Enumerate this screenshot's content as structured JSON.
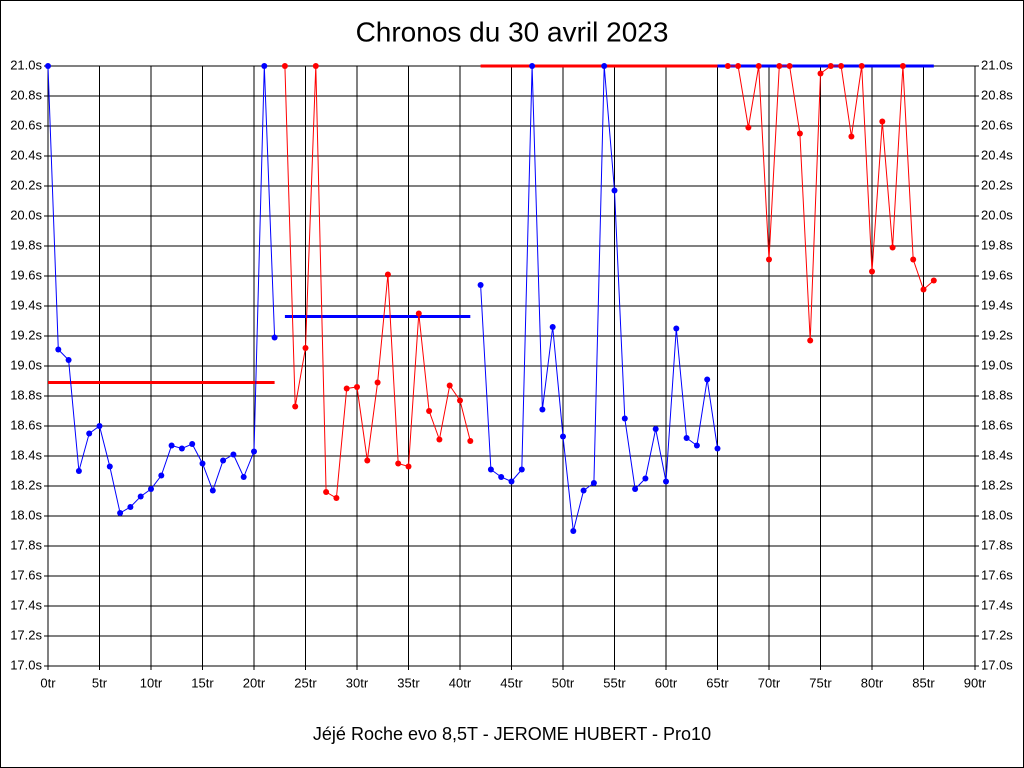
{
  "chart_data": {
    "type": "line",
    "title": "Chronos du 30 avril 2023",
    "caption": "Jéjé Roche evo 8,5T - JEROME HUBERT - Pro10",
    "xlim": [
      0,
      90
    ],
    "xticks": [
      {
        "value": 0,
        "label": "0tr"
      },
      {
        "value": 5,
        "label": "5tr"
      },
      {
        "value": 10,
        "label": "10tr"
      },
      {
        "value": 15,
        "label": "15tr"
      },
      {
        "value": 20,
        "label": "20tr"
      },
      {
        "value": 25,
        "label": "25tr"
      },
      {
        "value": 30,
        "label": "30tr"
      },
      {
        "value": 35,
        "label": "35tr"
      },
      {
        "value": 40,
        "label": "40tr"
      },
      {
        "value": 45,
        "label": "45tr"
      },
      {
        "value": 50,
        "label": "50tr"
      },
      {
        "value": 55,
        "label": "55tr"
      },
      {
        "value": 60,
        "label": "60tr"
      },
      {
        "value": 65,
        "label": "65tr"
      },
      {
        "value": 70,
        "label": "70tr"
      },
      {
        "value": 75,
        "label": "75tr"
      },
      {
        "value": 80,
        "label": "80tr"
      },
      {
        "value": 85,
        "label": "85tr"
      },
      {
        "value": 90,
        "label": "90tr"
      }
    ],
    "ylim": [
      17.0,
      21.0
    ],
    "yticks": [
      {
        "value": 17.0,
        "label": "17.0s"
      },
      {
        "value": 17.2,
        "label": "17.2s"
      },
      {
        "value": 17.4,
        "label": "17.4s"
      },
      {
        "value": 17.6,
        "label": "17.6s"
      },
      {
        "value": 17.8,
        "label": "17.8s"
      },
      {
        "value": 18.0,
        "label": "18.0s"
      },
      {
        "value": 18.2,
        "label": "18.2s"
      },
      {
        "value": 18.4,
        "label": "18.4s"
      },
      {
        "value": 18.6,
        "label": "18.6s"
      },
      {
        "value": 18.8,
        "label": "18.8s"
      },
      {
        "value": 19.0,
        "label": "19.0s"
      },
      {
        "value": 19.2,
        "label": "19.2s"
      },
      {
        "value": 19.4,
        "label": "19.4s"
      },
      {
        "value": 19.6,
        "label": "19.6s"
      },
      {
        "value": 19.8,
        "label": "19.8s"
      },
      {
        "value": 20.0,
        "label": "20.0s"
      },
      {
        "value": 20.2,
        "label": "20.2s"
      },
      {
        "value": 20.4,
        "label": "20.4s"
      },
      {
        "value": 20.6,
        "label": "20.6s"
      },
      {
        "value": 20.8,
        "label": "20.8s"
      },
      {
        "value": 21.0,
        "label": "21.0s"
      }
    ],
    "grid": true,
    "series": [
      {
        "color": "#0000ff",
        "x": [
          0,
          1,
          2,
          3,
          4,
          5,
          6,
          7,
          8,
          9,
          10,
          11,
          12,
          13,
          14,
          15,
          16,
          17,
          18,
          19,
          20,
          21,
          22
        ],
        "values": [
          21.0,
          19.11,
          19.04,
          18.3,
          18.55,
          18.6,
          18.33,
          18.02,
          18.06,
          18.13,
          18.18,
          18.27,
          18.47,
          18.45,
          18.48,
          18.35,
          18.17,
          18.37,
          18.41,
          18.26,
          18.43,
          21.0,
          19.19
        ]
      },
      {
        "color": "#ff0000",
        "x": [
          23,
          24,
          25,
          26,
          27,
          28,
          29,
          30,
          31,
          32,
          33,
          34,
          35,
          36,
          37,
          38,
          39,
          40,
          41
        ],
        "values": [
          21.0,
          18.73,
          19.12,
          21.0,
          18.16,
          18.12,
          18.85,
          18.86,
          18.37,
          18.89,
          19.61,
          18.35,
          18.33,
          19.35,
          18.7,
          18.51,
          18.87,
          18.77,
          18.5
        ]
      },
      {
        "color": "#0000ff",
        "x": [
          42,
          43,
          44,
          45,
          46,
          47,
          48,
          49,
          50,
          51,
          52,
          53,
          54,
          55,
          56,
          57,
          58,
          59,
          60,
          61,
          62,
          63,
          64,
          65
        ],
        "values": [
          19.54,
          18.31,
          18.26,
          18.23,
          18.31,
          21.0,
          18.71,
          19.26,
          18.53,
          17.9,
          18.17,
          18.22,
          21.0,
          20.17,
          18.65,
          18.18,
          18.25,
          18.58,
          18.23,
          19.25,
          18.52,
          18.47,
          18.91,
          18.45
        ]
      },
      {
        "color": "#ff0000",
        "x": [
          66,
          67,
          68,
          69,
          70,
          71,
          72,
          73,
          74,
          75,
          76,
          77,
          78,
          79,
          80,
          81,
          82,
          83,
          84,
          85,
          86
        ],
        "values": [
          21.0,
          21.0,
          20.59,
          21.0,
          19.71,
          21.0,
          21.0,
          20.55,
          19.17,
          20.95,
          21.0,
          21.0,
          20.53,
          21.0,
          19.63,
          20.63,
          19.79,
          21.0,
          19.71,
          19.51,
          19.57
        ]
      }
    ],
    "averages": [
      {
        "color": "#ff0000",
        "x": [
          0,
          22
        ],
        "value": 18.89
      },
      {
        "color": "#0000ff",
        "x": [
          23,
          41
        ],
        "value": 19.33
      },
      {
        "color": "#ff0000",
        "x": [
          42,
          65
        ],
        "value": 21.0
      },
      {
        "color": "#0000ff",
        "x": [
          65,
          86
        ],
        "value": 21.0
      }
    ]
  }
}
